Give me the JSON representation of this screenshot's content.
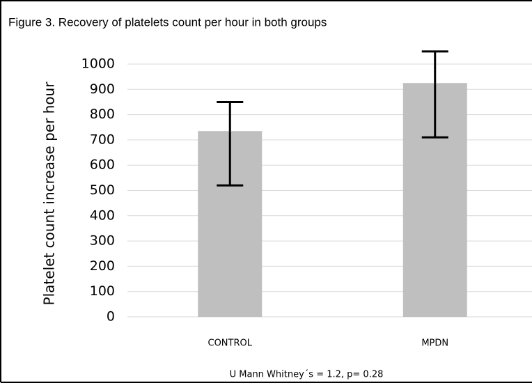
{
  "chart_data": {
    "type": "bar",
    "title": "Figure 3. Recovery of platelets count per hour in both groups",
    "y_label": "Platelet count increase per hour",
    "footnote": "U Mann Whitney´s = 1.2, p= 0.28",
    "categories": [
      "CONTROL",
      "MPDN"
    ],
    "values": [
      735,
      925
    ],
    "errors_minus": [
      215,
      215
    ],
    "errors_plus": [
      115,
      125
    ],
    "color": "#bfbfbf",
    "ylim": [
      0,
      1000
    ],
    "yticks": [
      0,
      100,
      200,
      300,
      400,
      500,
      600,
      700,
      800,
      900,
      1000
    ],
    "grid": true
  }
}
